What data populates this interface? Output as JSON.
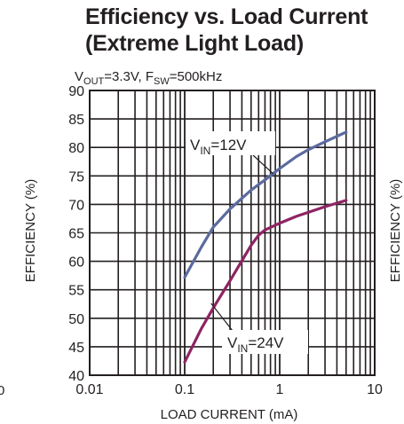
{
  "chart_data": {
    "type": "line",
    "title": "Efficiency vs. Load Current",
    "subtitle": "(Extreme Light Load)",
    "conditions": {
      "vout": {
        "pre": "V",
        "sub": "OUT",
        "post": "=3.3V, "
      },
      "fsw": {
        "pre": "F",
        "sub": "SW",
        "post": "=500kHz"
      }
    },
    "xlabel": "LOAD CURRENT (mA)",
    "ylabel": "EFFICIENCY (%)",
    "right_ylabel": "EFFICIENCY (%)",
    "left_edge_fragment": "0",
    "x_scale": "log",
    "xlim": [
      0.01,
      10
    ],
    "ylim": [
      40,
      90
    ],
    "x_ticks": [
      0.01,
      0.1,
      1,
      10
    ],
    "x_tick_labels": [
      "0.01",
      "0.1",
      "1",
      "10"
    ],
    "y_ticks": [
      40,
      45,
      50,
      55,
      60,
      65,
      70,
      75,
      80,
      85,
      90
    ],
    "y_tick_labels": [
      "40",
      "45",
      "50",
      "55",
      "60",
      "65",
      "70",
      "75",
      "80",
      "85",
      "90"
    ],
    "grid": true,
    "series": [
      {
        "name": "VIN=12V",
        "label": {
          "pre": "V",
          "sub": "IN",
          "post": "=12V"
        },
        "color": "#5b6a9e",
        "x": [
          0.1,
          0.15,
          0.2,
          0.3,
          0.5,
          0.7,
          1,
          1.5,
          2,
          3,
          5
        ],
        "y": [
          57.2,
          62.5,
          66.0,
          69.2,
          72.5,
          74.3,
          76.3,
          78.4,
          79.6,
          81.0,
          82.7
        ]
      },
      {
        "name": "VIN=24V",
        "label": {
          "pre": "V",
          "sub": "IN",
          "post": "=24V"
        },
        "color": "#8e2463",
        "x": [
          0.1,
          0.15,
          0.2,
          0.3,
          0.4,
          0.5,
          0.6,
          0.7,
          1,
          1.5,
          2,
          3,
          5
        ],
        "y": [
          42.3,
          48.2,
          51.8,
          56.6,
          60.1,
          62.8,
          64.6,
          65.5,
          66.7,
          67.9,
          68.6,
          69.6,
          70.7
        ]
      }
    ]
  }
}
